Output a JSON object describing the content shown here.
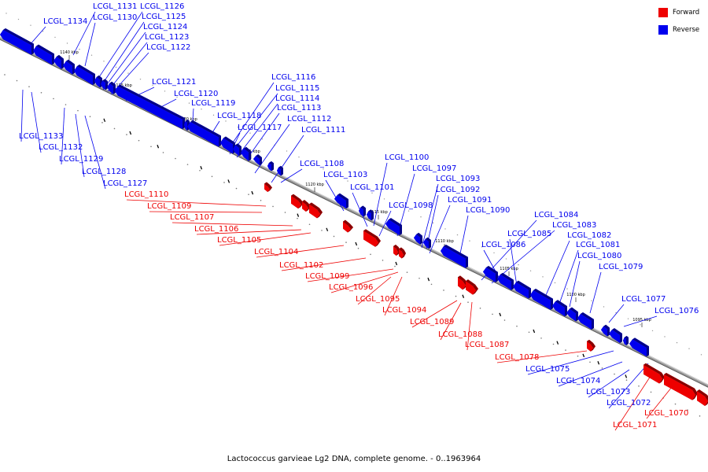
{
  "caption": "Lactococcus garvieae Lg2 DNA, complete genome. - 0..1963964",
  "legend": [
    {
      "label": "Forward",
      "color": "#ee0000"
    },
    {
      "label": "Reverse",
      "color": "#0000ee"
    }
  ],
  "colors": {
    "forward": "#ee0000",
    "reverse": "#0000ee",
    "backbone": "#888888"
  },
  "ticks": [
    "1140 kbp",
    "1135 kbp",
    "1130 kbp",
    "1125 kbp",
    "1120 kbp",
    "1115 kbp",
    "1110 kbp",
    "1105 kbp",
    "1100 kbp",
    "1095 kbp"
  ],
  "genes": [
    {
      "id": "LCGL_1134",
      "strand": "reverse"
    },
    {
      "id": "LCGL_1131",
      "strand": "reverse"
    },
    {
      "id": "LCGL_1130",
      "strand": "reverse"
    },
    {
      "id": "LCGL_1126",
      "strand": "reverse"
    },
    {
      "id": "LCGL_1125",
      "strand": "reverse"
    },
    {
      "id": "LCGL_1124",
      "strand": "reverse"
    },
    {
      "id": "LCGL_1123",
      "strand": "reverse"
    },
    {
      "id": "LCGL_1122",
      "strand": "reverse"
    },
    {
      "id": "LCGL_1121",
      "strand": "reverse"
    },
    {
      "id": "LCGL_1120",
      "strand": "reverse"
    },
    {
      "id": "LCGL_1119",
      "strand": "reverse"
    },
    {
      "id": "LCGL_1118",
      "strand": "reverse"
    },
    {
      "id": "LCGL_1117",
      "strand": "reverse"
    },
    {
      "id": "LCGL_1116",
      "strand": "reverse"
    },
    {
      "id": "LCGL_1115",
      "strand": "reverse"
    },
    {
      "id": "LCGL_1114",
      "strand": "reverse"
    },
    {
      "id": "LCGL_1113",
      "strand": "reverse"
    },
    {
      "id": "LCGL_1112",
      "strand": "reverse"
    },
    {
      "id": "LCGL_1111",
      "strand": "reverse"
    },
    {
      "id": "LCGL_1133",
      "strand": "reverse"
    },
    {
      "id": "LCGL_1132",
      "strand": "reverse"
    },
    {
      "id": "LCGL_1129",
      "strand": "reverse"
    },
    {
      "id": "LCGL_1128",
      "strand": "reverse"
    },
    {
      "id": "LCGL_1127",
      "strand": "reverse"
    },
    {
      "id": "LCGL_1108",
      "strand": "reverse"
    },
    {
      "id": "LCGL_1103",
      "strand": "reverse"
    },
    {
      "id": "LCGL_1100",
      "strand": "reverse"
    },
    {
      "id": "LCGL_1097",
      "strand": "reverse"
    },
    {
      "id": "LCGL_1101",
      "strand": "reverse"
    },
    {
      "id": "LCGL_1093",
      "strand": "reverse"
    },
    {
      "id": "LCGL_1092",
      "strand": "reverse"
    },
    {
      "id": "LCGL_1098",
      "strand": "reverse"
    },
    {
      "id": "LCGL_1091",
      "strand": "reverse"
    },
    {
      "id": "LCGL_1090",
      "strand": "reverse"
    },
    {
      "id": "LCGL_1084",
      "strand": "reverse"
    },
    {
      "id": "LCGL_1083",
      "strand": "reverse"
    },
    {
      "id": "LCGL_1085",
      "strand": "reverse"
    },
    {
      "id": "LCGL_1082",
      "strand": "reverse"
    },
    {
      "id": "LCGL_1086",
      "strand": "reverse"
    },
    {
      "id": "LCGL_1081",
      "strand": "reverse"
    },
    {
      "id": "LCGL_1080",
      "strand": "reverse"
    },
    {
      "id": "LCGL_1079",
      "strand": "reverse"
    },
    {
      "id": "LCGL_1077",
      "strand": "reverse"
    },
    {
      "id": "LCGL_1076",
      "strand": "reverse"
    },
    {
      "id": "LCGL_1075",
      "strand": "reverse"
    },
    {
      "id": "LCGL_1074",
      "strand": "reverse"
    },
    {
      "id": "LCGL_1073",
      "strand": "reverse"
    },
    {
      "id": "LCGL_1072",
      "strand": "reverse"
    },
    {
      "id": "LCGL_1110",
      "strand": "forward"
    },
    {
      "id": "LCGL_1109",
      "strand": "forward"
    },
    {
      "id": "LCGL_1107",
      "strand": "forward"
    },
    {
      "id": "LCGL_1106",
      "strand": "forward"
    },
    {
      "id": "LCGL_1105",
      "strand": "forward"
    },
    {
      "id": "LCGL_1104",
      "strand": "forward"
    },
    {
      "id": "LCGL_1102",
      "strand": "forward"
    },
    {
      "id": "LCGL_1099",
      "strand": "forward"
    },
    {
      "id": "LCGL_1096",
      "strand": "forward"
    },
    {
      "id": "LCGL_1095",
      "strand": "forward"
    },
    {
      "id": "LCGL_1094",
      "strand": "forward"
    },
    {
      "id": "LCGL_1089",
      "strand": "forward"
    },
    {
      "id": "LCGL_1088",
      "strand": "forward"
    },
    {
      "id": "LCGL_1087",
      "strand": "forward"
    },
    {
      "id": "LCGL_1078",
      "strand": "forward"
    },
    {
      "id": "LCGL_1070",
      "strand": "forward"
    },
    {
      "id": "LCGL_1071",
      "strand": "forward"
    }
  ]
}
